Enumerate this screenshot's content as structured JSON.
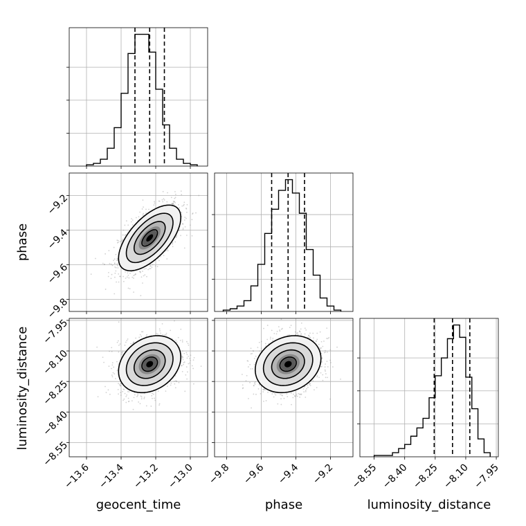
{
  "chart_data": {
    "type": "corner",
    "parameters": [
      "geocent_time",
      "phase",
      "luminosity_distance"
    ],
    "axes": {
      "geocent_time": {
        "range": [
          -13.7,
          -12.9
        ],
        "ticks": [
          -13.6,
          -13.4,
          -13.2,
          -13.0
        ],
        "tick_labels": [
          "−13.6",
          "−13.4",
          "−13.2",
          "−13.0"
        ]
      },
      "phase": {
        "range": [
          -9.87,
          -9.07
        ],
        "ticks": [
          -9.8,
          -9.6,
          -9.4,
          -9.2
        ],
        "tick_labels": [
          "−9.8",
          "−9.6",
          "−9.4",
          "−9.2"
        ]
      },
      "luminosity_distance": {
        "range": [
          -8.62,
          -7.94
        ],
        "ticks": [
          -8.55,
          -8.4,
          -8.25,
          -8.1,
          -7.95
        ],
        "tick_labels": [
          "−8.55",
          "−8.40",
          "−8.25",
          "−8.10",
          "−7.95"
        ]
      }
    },
    "histograms": [
      {
        "param": "geocent_time",
        "bin_edges": [
          -13.6,
          -13.56,
          -13.52,
          -13.48,
          -13.44,
          -13.4,
          -13.36,
          -13.32,
          -13.28,
          -13.24,
          -13.2,
          -13.16,
          -13.12,
          -13.08,
          -13.04,
          -13.0,
          -12.96
        ],
        "counts": [
          1,
          2,
          5,
          13,
          28,
          53,
          82,
          96,
          96,
          83,
          56,
          30,
          13,
          5,
          2,
          1
        ],
        "quantiles": [
          -13.32,
          -13.235,
          -13.15
        ]
      },
      {
        "param": "phase",
        "bin_edges": [
          -9.82,
          -9.78,
          -9.74,
          -9.7,
          -9.66,
          -9.62,
          -9.58,
          -9.54,
          -9.5,
          -9.46,
          -9.42,
          -9.38,
          -9.34,
          -9.3,
          -9.26,
          -9.22,
          -9.18,
          -9.14
        ],
        "counts": [
          1,
          2,
          4,
          8,
          19,
          35,
          58,
          76,
          90,
          98,
          88,
          73,
          46,
          27,
          10,
          4,
          1
        ],
        "quantiles": [
          -9.54,
          -9.445,
          -9.35
        ]
      },
      {
        "param": "luminosity_distance",
        "bin_edges": [
          -8.55,
          -8.52,
          -8.49,
          -8.46,
          -8.43,
          -8.4,
          -8.37,
          -8.34,
          -8.31,
          -8.28,
          -8.25,
          -8.22,
          -8.19,
          -8.16,
          -8.13,
          -8.1,
          -8.07,
          -8.04,
          -8.01,
          -7.98
        ],
        "counts": [
          1,
          1,
          1,
          3,
          6,
          9,
          15,
          21,
          28,
          43,
          59,
          72,
          86,
          96,
          87,
          58,
          35,
          13,
          3
        ],
        "quantiles": [
          -8.255,
          -8.165,
          -8.08
        ]
      }
    ],
    "contours_2d": [
      {
        "x": "geocent_time",
        "y": "phase",
        "mean": [
          -13.235,
          -9.445
        ],
        "std": [
          0.09,
          0.095
        ],
        "corr": 0.62,
        "levels_sigma": [
          0.5,
          1.0,
          1.5,
          2.0
        ]
      },
      {
        "x": "geocent_time",
        "y": "luminosity_distance",
        "mean": [
          -13.235,
          -8.165
        ],
        "std": [
          0.09,
          0.07
        ],
        "corr": 0.25,
        "levels_sigma": [
          0.5,
          1.0,
          1.5,
          2.0
        ]
      },
      {
        "x": "phase",
        "y": "luminosity_distance",
        "mean": [
          -9.445,
          -8.165
        ],
        "std": [
          0.095,
          0.07
        ],
        "corr": 0.2,
        "levels_sigma": [
          0.5,
          1.0,
          1.5,
          2.0
        ]
      }
    ],
    "grid": true,
    "xlabels": [
      "geocent_time",
      "phase",
      "luminosity_distance"
    ],
    "ylabels": [
      "",
      "phase",
      "luminosity_distance"
    ]
  }
}
